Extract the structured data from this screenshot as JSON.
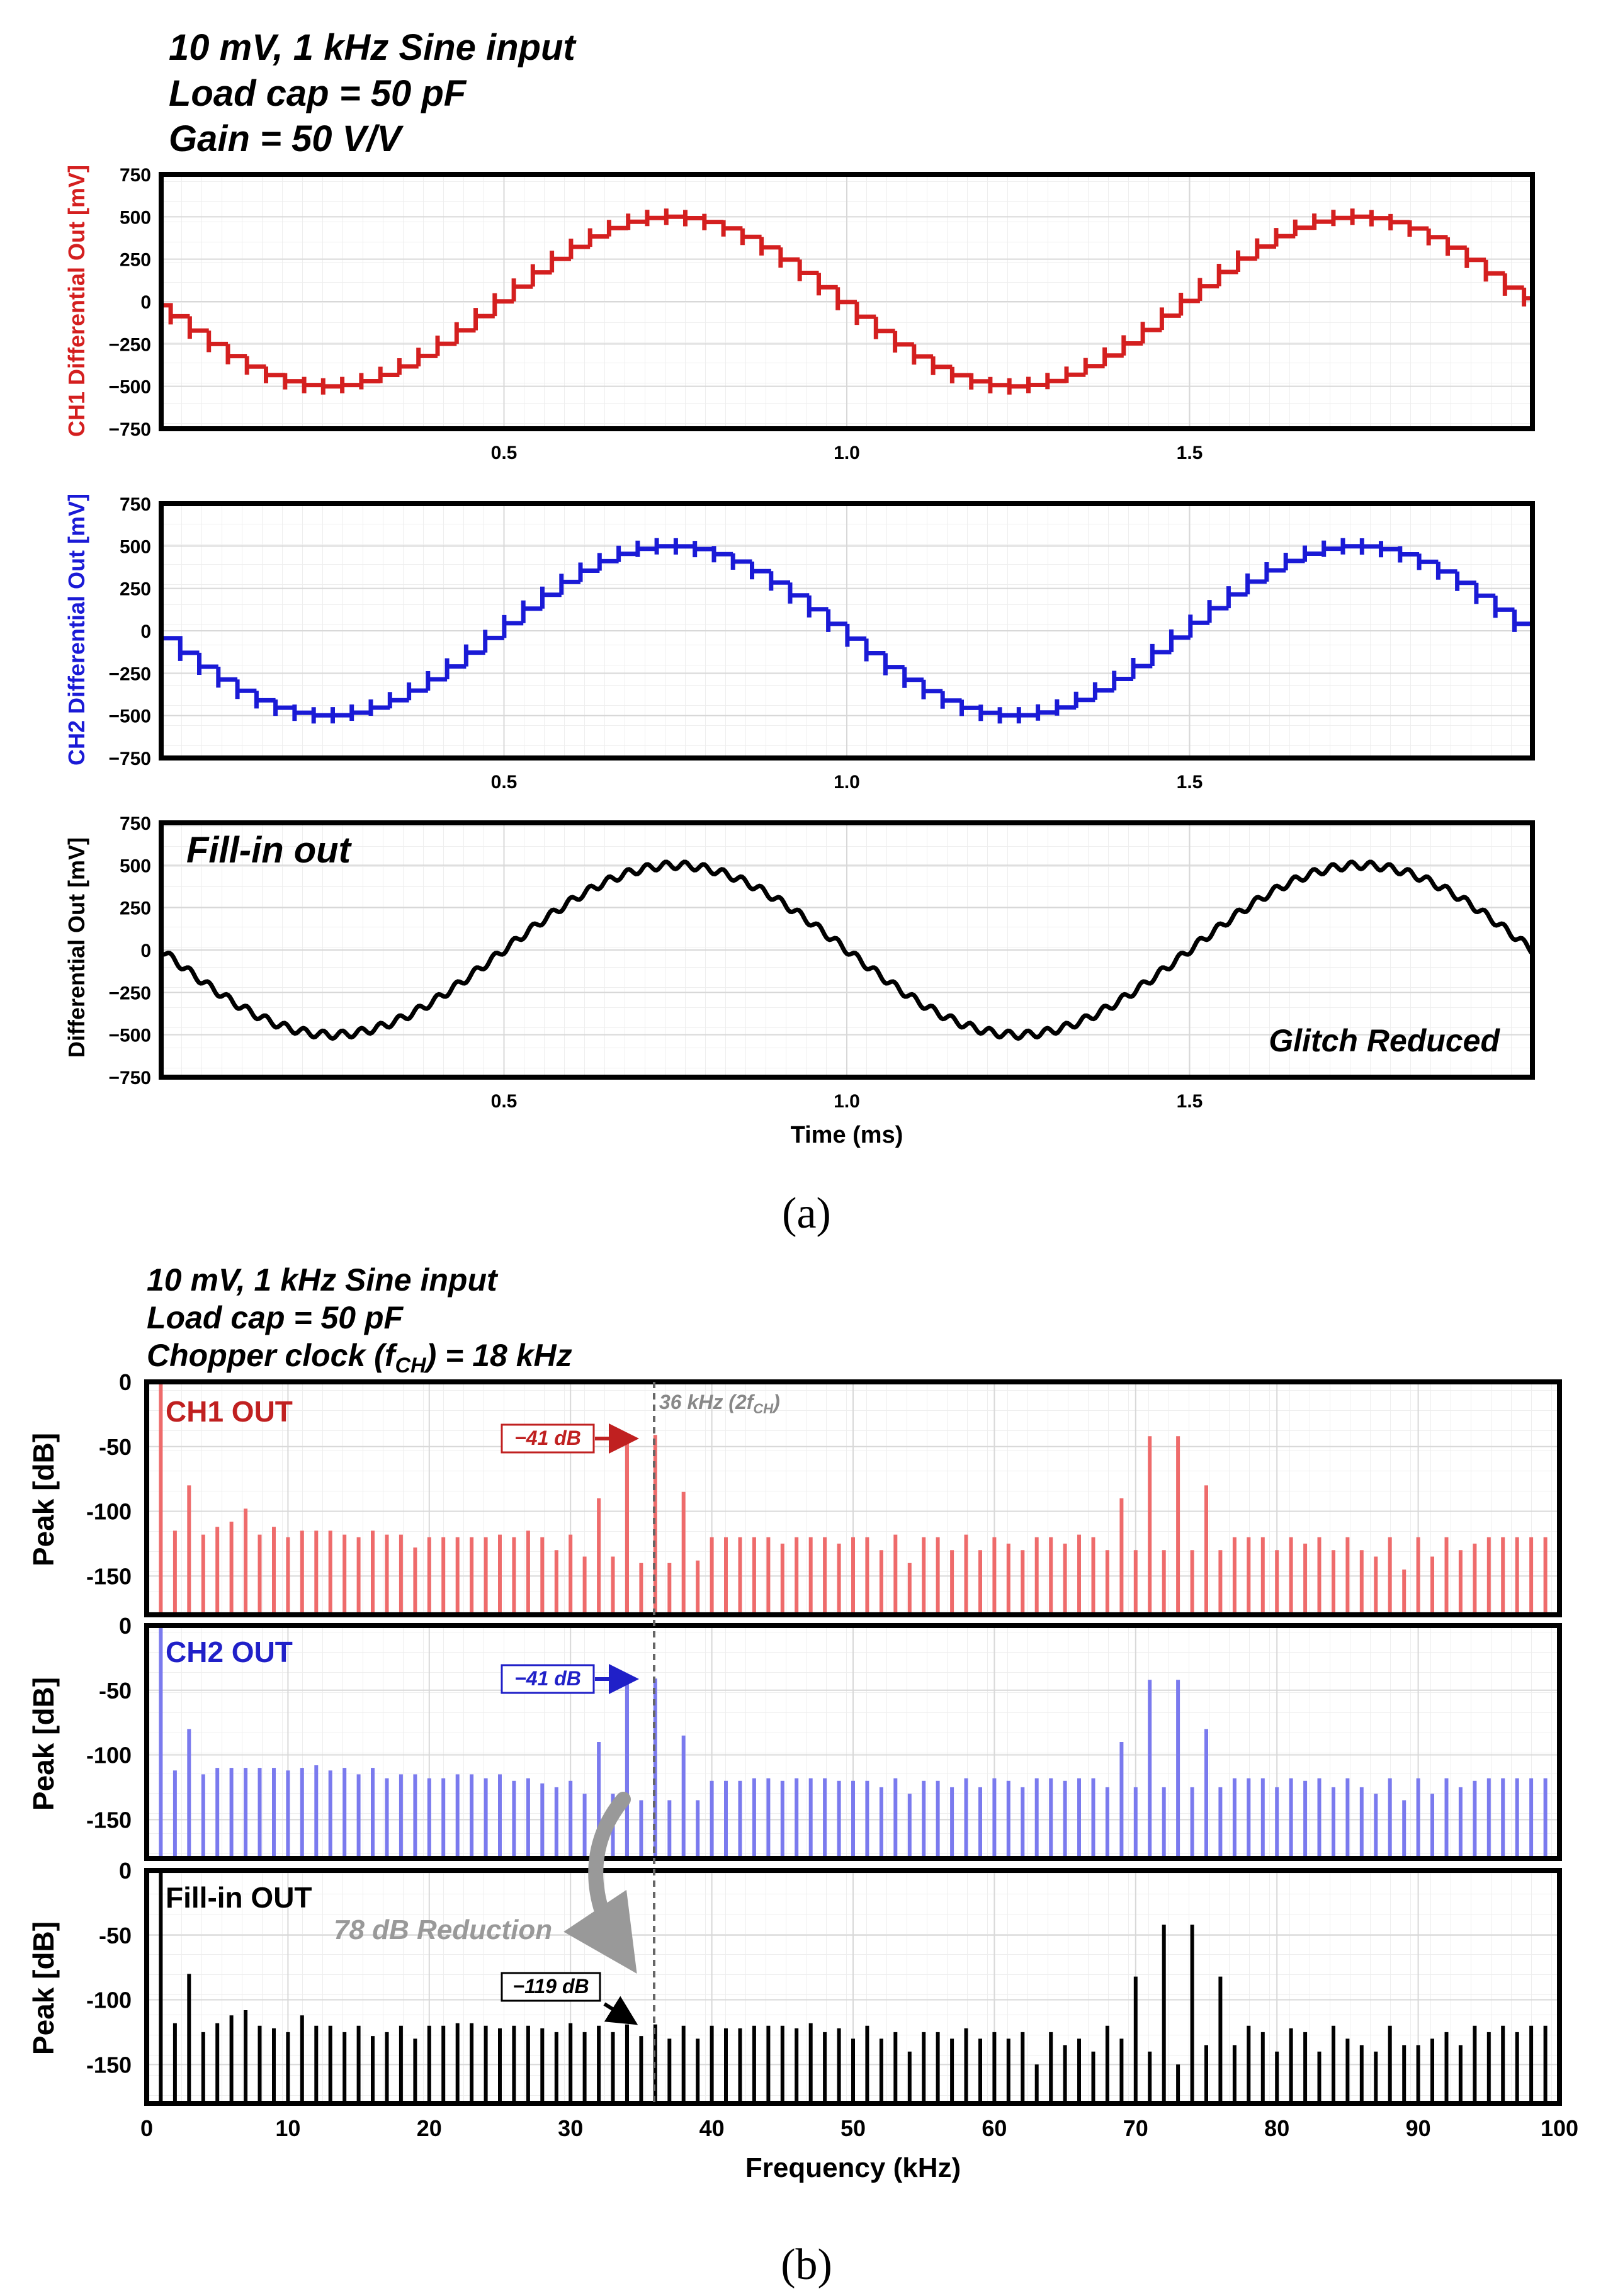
{
  "panel_a": {
    "header": [
      "10 mV, 1 kHz Sine input",
      "Load cap = 50 pF",
      "Gain = 50 V/V"
    ],
    "caption": "(a)",
    "xlabel": "Time (ms)",
    "colors": {
      "ch1": "#d41f1f",
      "ch2": "#1a1ad6",
      "fill": "#000000"
    }
  },
  "panel_b": {
    "header": [
      "10 mV, 1 kHz Sine input",
      "Load cap = 50 pF",
      "Chopper clock (f",
      "CH",
      ") = 18 kHz"
    ],
    "caption": "(b)",
    "xlabel": "Frequency (kHz)",
    "vline_label": "36 kHz (2f",
    "vline_sub": "CH",
    "vline_end": ")",
    "reduction_label": "78 dB Reduction",
    "colors": {
      "ch1": "#ee6b6b",
      "ch2": "#7a7aee",
      "fill": "#000000",
      "ch1_label": "#c02020",
      "ch2_label": "#2020c8",
      "arrow": "#999999"
    }
  },
  "chart_data": [
    {
      "type": "line",
      "title": "",
      "series": [
        {
          "name": "CH1 Differential Out",
          "shape": "stepped sine",
          "amplitude_mv": 500,
          "frequency_khz": 1,
          "initial_value_mv": 0,
          "step_period_ms": 0.0278
        }
      ],
      "xlabel": "",
      "ylabel": "CH1 Differential Out [mV]",
      "xlim": [
        0,
        2
      ],
      "ylim": [
        -750,
        750
      ],
      "xticks": [
        "0.5",
        "1.0",
        "1.5"
      ],
      "yticks": [
        "750",
        "500",
        "250",
        "0",
        "−250",
        "−500",
        "−750"
      ],
      "grid": true
    },
    {
      "type": "line",
      "title": "",
      "series": [
        {
          "name": "CH2 Differential Out",
          "shape": "stepped sine",
          "amplitude_mv": 500,
          "frequency_khz": 1,
          "initial_value_mv": 0,
          "step_period_ms": 0.0278
        }
      ],
      "xlabel": "",
      "ylabel": "CH2 Differential Out [mV]",
      "xlim": [
        0,
        2
      ],
      "ylim": [
        -750,
        750
      ],
      "xticks": [
        "0.5",
        "1.0",
        "1.5"
      ],
      "yticks": [
        "750",
        "500",
        "250",
        "0",
        "−250",
        "−500",
        "−750"
      ],
      "grid": true
    },
    {
      "type": "line",
      "title": "Fill-in out",
      "annotation": "Glitch Reduced",
      "series": [
        {
          "name": "Fill-in Differential Out",
          "shape": "sine",
          "amplitude_mv": 500,
          "frequency_khz": 1,
          "initial_value_mv": 0
        }
      ],
      "xlabel": "Time (ms)",
      "ylabel": "Differential Out [mV]",
      "xlim": [
        0,
        2
      ],
      "ylim": [
        -750,
        750
      ],
      "xticks": [
        "0.5",
        "1.0",
        "1.5"
      ],
      "yticks": [
        "750",
        "500",
        "250",
        "0",
        "−250",
        "−500",
        "−750"
      ],
      "grid": true
    },
    {
      "type": "bar",
      "title": "CH1 OUT",
      "annotation": "−41 dB",
      "xlabel": "",
      "ylabel": "Peak [dB]",
      "xlim": [
        0,
        100
      ],
      "ylim": [
        -180,
        0
      ],
      "yticks": [
        "0",
        "-50",
        "-100",
        "-150"
      ],
      "x": [
        1,
        2,
        3,
        4,
        5,
        6,
        7,
        8,
        9,
        10,
        11,
        12,
        13,
        14,
        15,
        16,
        17,
        18,
        19,
        20,
        21,
        22,
        23,
        24,
        25,
        26,
        27,
        28,
        29,
        30,
        31,
        32,
        33,
        34,
        35,
        36,
        37,
        38,
        39,
        40,
        41,
        42,
        43,
        44,
        45,
        46,
        47,
        48,
        49,
        50,
        51,
        52,
        53,
        54,
        55,
        56,
        57,
        58,
        59,
        60,
        61,
        62,
        63,
        64,
        65,
        66,
        67,
        68,
        69,
        70,
        71,
        72,
        73,
        74,
        75,
        76,
        77,
        78,
        79,
        80,
        81,
        82,
        83,
        84,
        85,
        86,
        87,
        88,
        89,
        90,
        91,
        92,
        93,
        94,
        95,
        96,
        97,
        98,
        99
      ],
      "values": [
        0,
        -115,
        -80,
        -118,
        -112,
        -108,
        -98,
        -118,
        -112,
        -120,
        -115,
        -115,
        -115,
        -118,
        -120,
        -115,
        -118,
        -118,
        -128,
        -120,
        -120,
        -120,
        -120,
        -120,
        -118,
        -120,
        -115,
        -120,
        -130,
        -118,
        -135,
        -90,
        -135,
        -41,
        -140,
        -41,
        -140,
        -85,
        -138,
        -120,
        -120,
        -120,
        -120,
        -120,
        -125,
        -120,
        -120,
        -120,
        -125,
        -120,
        -120,
        -130,
        -118,
        -140,
        -120,
        -120,
        -130,
        -118,
        -130,
        -120,
        -125,
        -130,
        -120,
        -120,
        -125,
        -118,
        -120,
        -130,
        -90,
        -130,
        -42,
        -130,
        -42,
        -130,
        -80,
        -130,
        -120,
        -120,
        -120,
        -130,
        -120,
        -125,
        -120,
        -130,
        -120,
        -130,
        -135,
        -120,
        -145,
        -120,
        -135,
        -120,
        -130,
        -125,
        -120,
        -120,
        -120,
        -120,
        -120
      ]
    },
    {
      "type": "bar",
      "title": "CH2 OUT",
      "annotation": "−41 dB",
      "xlabel": "",
      "ylabel": "Peak [dB]",
      "xlim": [
        0,
        100
      ],
      "ylim": [
        -180,
        0
      ],
      "yticks": [
        "0",
        "-50",
        "-100",
        "-150"
      ],
      "x": [
        1,
        2,
        3,
        4,
        5,
        6,
        7,
        8,
        9,
        10,
        11,
        12,
        13,
        14,
        15,
        16,
        17,
        18,
        19,
        20,
        21,
        22,
        23,
        24,
        25,
        26,
        27,
        28,
        29,
        30,
        31,
        32,
        33,
        34,
        35,
        36,
        37,
        38,
        39,
        40,
        41,
        42,
        43,
        44,
        45,
        46,
        47,
        48,
        49,
        50,
        51,
        52,
        53,
        54,
        55,
        56,
        57,
        58,
        59,
        60,
        61,
        62,
        63,
        64,
        65,
        66,
        67,
        68,
        69,
        70,
        71,
        72,
        73,
        74,
        75,
        76,
        77,
        78,
        79,
        80,
        81,
        82,
        83,
        84,
        85,
        86,
        87,
        88,
        89,
        90,
        91,
        92,
        93,
        94,
        95,
        96,
        97,
        98,
        99
      ],
      "values": [
        0,
        -112,
        -80,
        -115,
        -110,
        -110,
        -110,
        -110,
        -110,
        -112,
        -110,
        -108,
        -112,
        -110,
        -115,
        -110,
        -118,
        -115,
        -115,
        -118,
        -118,
        -115,
        -115,
        -118,
        -115,
        -120,
        -118,
        -122,
        -125,
        -120,
        -130,
        -90,
        -130,
        -41,
        -135,
        -41,
        -135,
        -85,
        -135,
        -120,
        -120,
        -120,
        -118,
        -118,
        -120,
        -118,
        -118,
        -118,
        -120,
        -120,
        -120,
        -125,
        -118,
        -130,
        -120,
        -120,
        -125,
        -118,
        -125,
        -118,
        -120,
        -125,
        -118,
        -118,
        -120,
        -118,
        -118,
        -125,
        -90,
        -125,
        -42,
        -125,
        -42,
        -125,
        -80,
        -125,
        -118,
        -118,
        -118,
        -125,
        -118,
        -120,
        -118,
        -125,
        -118,
        -125,
        -130,
        -118,
        -135,
        -118,
        -130,
        -118,
        -125,
        -120,
        -118,
        -118,
        -118,
        -118,
        -118
      ]
    },
    {
      "type": "bar",
      "title": "Fill-in OUT",
      "annotation": "−119 dB",
      "xlabel": "Frequency (kHz)",
      "ylabel": "Peak [dB]",
      "xlim": [
        0,
        100
      ],
      "ylim": [
        -180,
        0
      ],
      "xticks": [
        "0",
        "10",
        "20",
        "30",
        "40",
        "50",
        "60",
        "70",
        "80",
        "90",
        "100"
      ],
      "yticks": [
        "0",
        "-50",
        "-100",
        "-150"
      ],
      "x": [
        1,
        2,
        3,
        4,
        5,
        6,
        7,
        8,
        9,
        10,
        11,
        12,
        13,
        14,
        15,
        16,
        17,
        18,
        19,
        20,
        21,
        22,
        23,
        24,
        25,
        26,
        27,
        28,
        29,
        30,
        31,
        32,
        33,
        34,
        35,
        36,
        37,
        38,
        39,
        40,
        41,
        42,
        43,
        44,
        45,
        46,
        47,
        48,
        49,
        50,
        51,
        52,
        53,
        54,
        55,
        56,
        57,
        58,
        59,
        60,
        61,
        62,
        63,
        64,
        65,
        66,
        67,
        68,
        69,
        70,
        71,
        72,
        73,
        74,
        75,
        76,
        77,
        78,
        79,
        80,
        81,
        82,
        83,
        84,
        85,
        86,
        87,
        88,
        89,
        90,
        91,
        92,
        93,
        94,
        95,
        96,
        97,
        98,
        99
      ],
      "values": [
        0,
        -118,
        -80,
        -125,
        -118,
        -112,
        -108,
        -120,
        -122,
        -125,
        -112,
        -120,
        -120,
        -125,
        -120,
        -128,
        -125,
        -120,
        -130,
        -120,
        -120,
        -118,
        -118,
        -120,
        -122,
        -120,
        -120,
        -122,
        -125,
        -118,
        -125,
        -120,
        -125,
        -119,
        -128,
        -119,
        -130,
        -120,
        -130,
        -120,
        -122,
        -122,
        -120,
        -120,
        -120,
        -122,
        -118,
        -125,
        -122,
        -130,
        -120,
        -130,
        -125,
        -140,
        -125,
        -125,
        -130,
        -122,
        -130,
        -125,
        -130,
        -125,
        -150,
        -125,
        -135,
        -130,
        -140,
        -120,
        -130,
        -82,
        -140,
        -42,
        -150,
        -42,
        -135,
        -82,
        -135,
        -120,
        -125,
        -140,
        -122,
        -125,
        -140,
        -120,
        -130,
        -135,
        -140,
        -120,
        -135,
        -135,
        -130,
        -125,
        -135,
        -120,
        -125,
        -120,
        -125,
        -120,
        -120
      ]
    }
  ]
}
